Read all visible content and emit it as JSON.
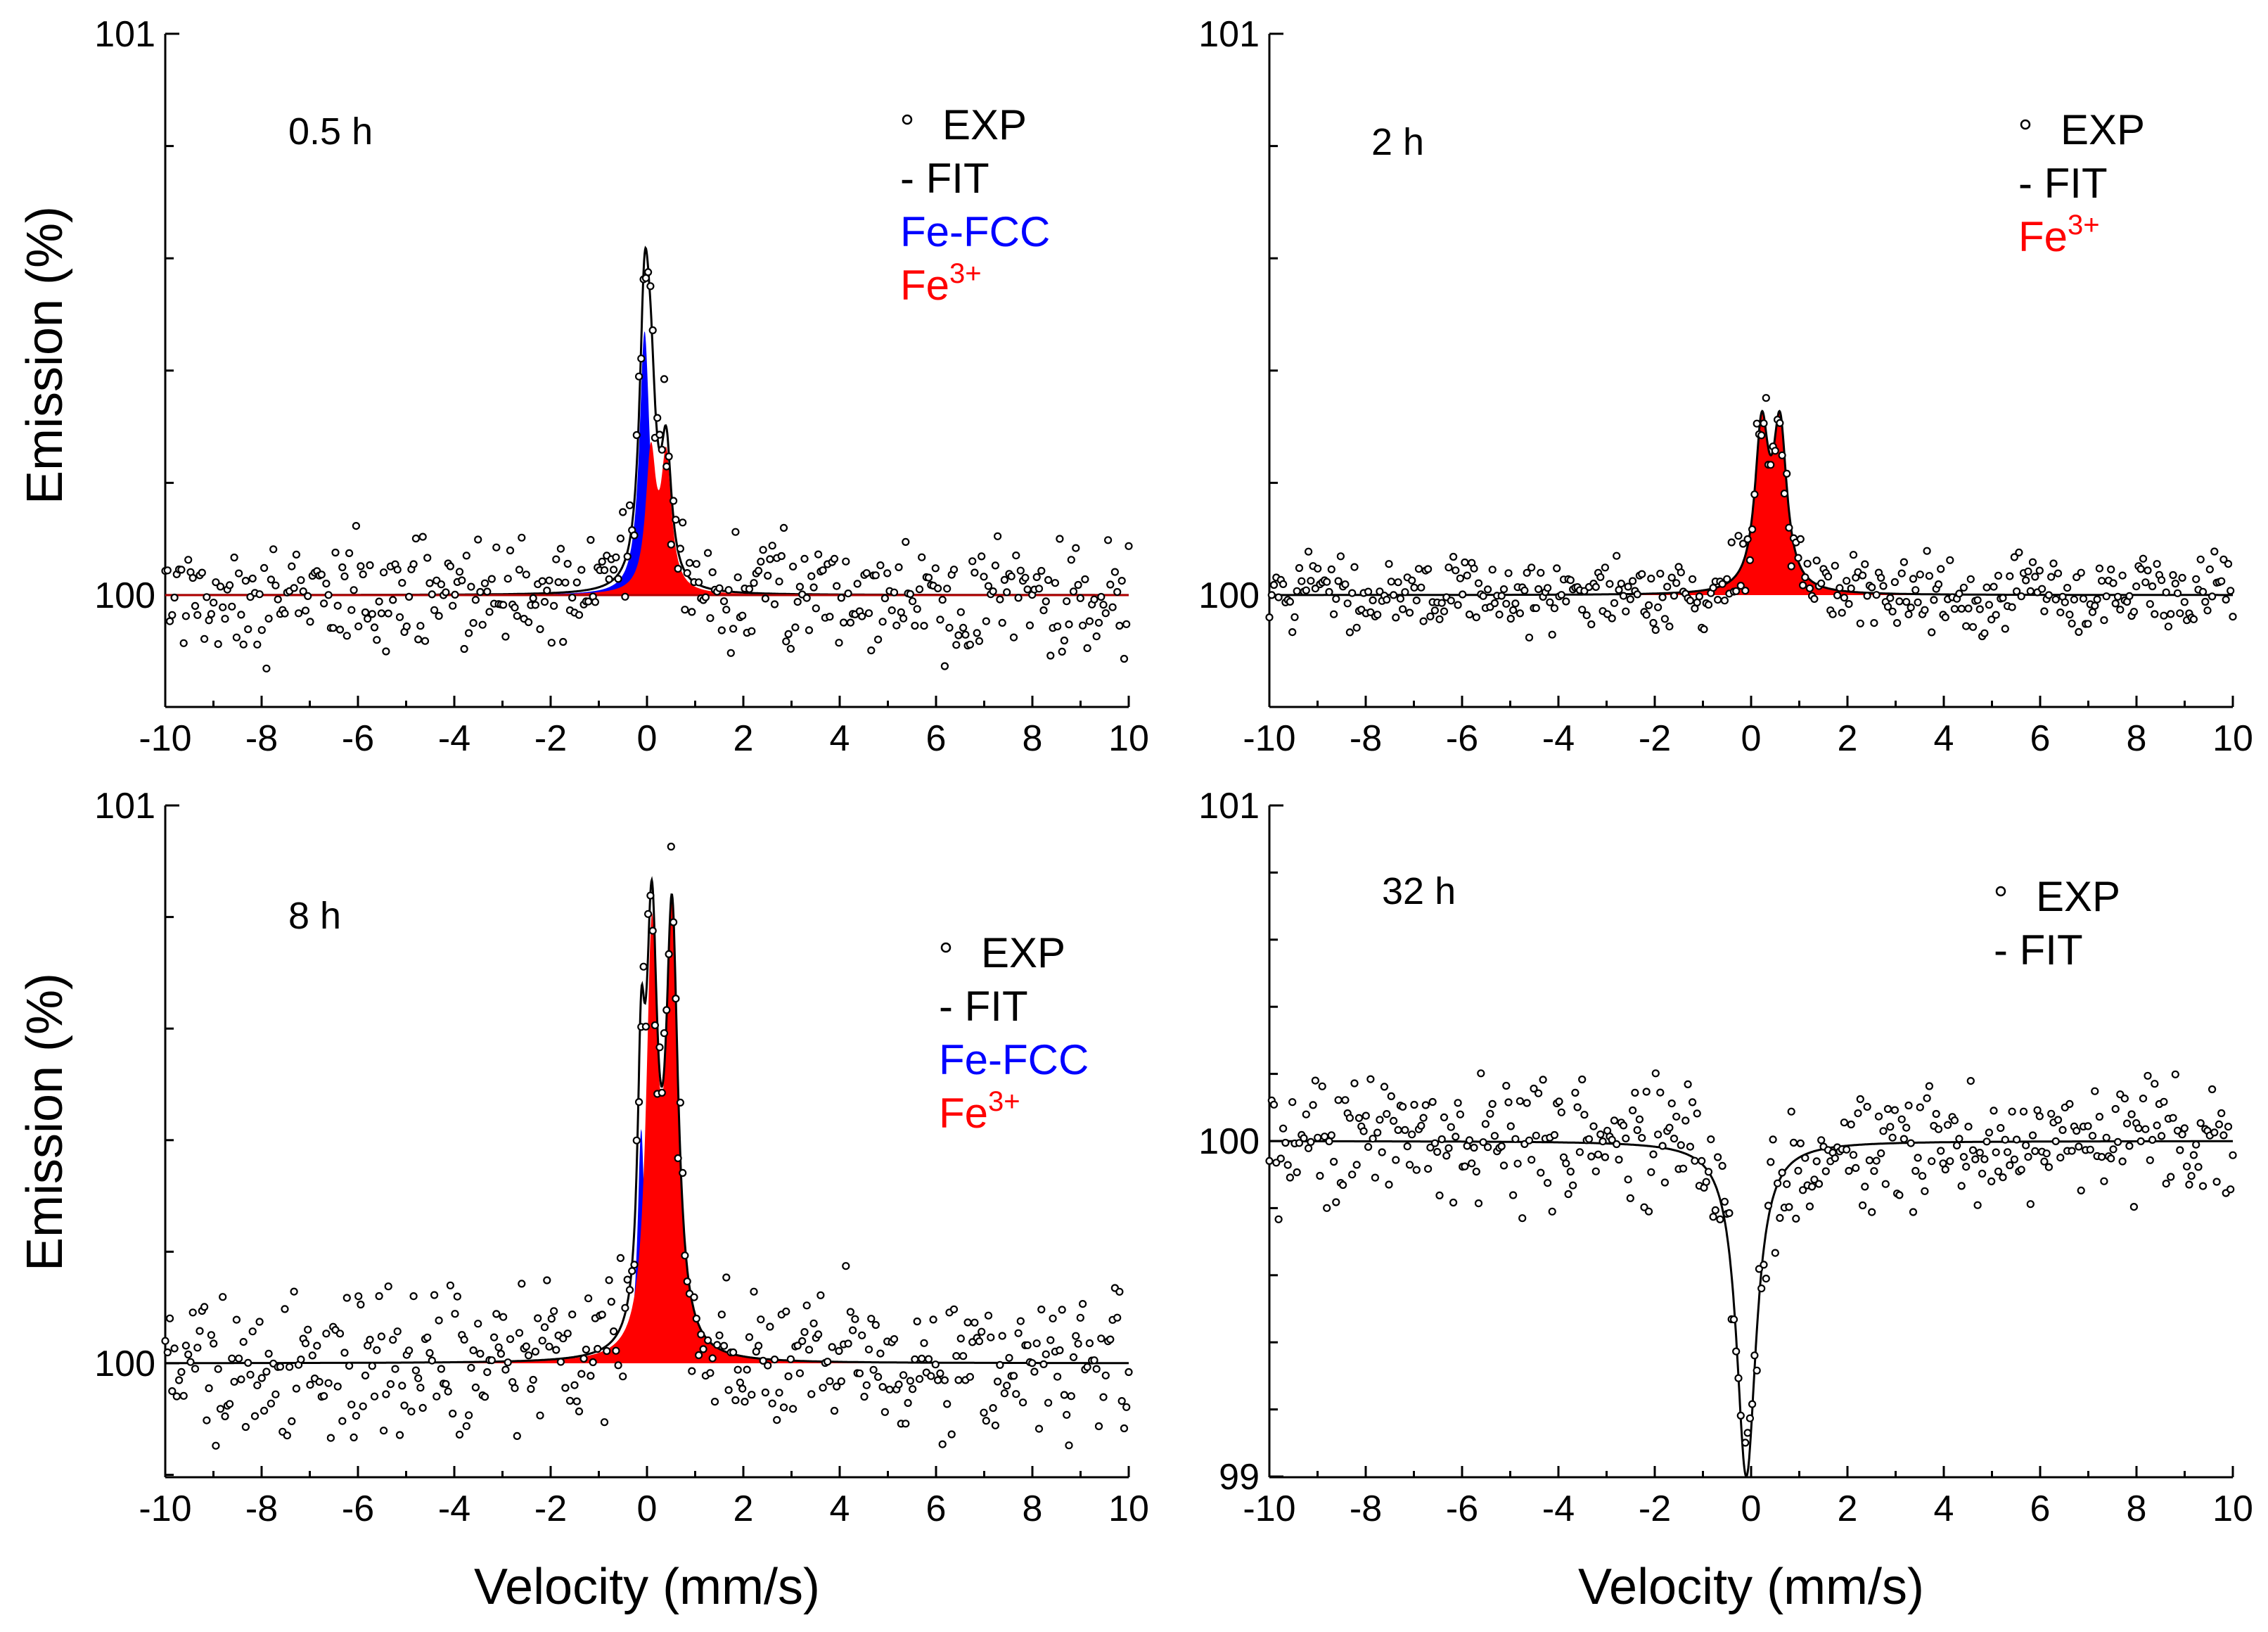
{
  "figure": {
    "xlabel": "Velocity (mm/s)",
    "ylabel": "Emission (%)",
    "colors": {
      "exp": "#000000",
      "fit": "#000000",
      "fe_fcc": "#0000ff",
      "fe3": "#ff0000",
      "baseline_05h": "#b00000"
    }
  },
  "chart_data": [
    {
      "type": "scatter",
      "panel_label": "0.5 h",
      "xlim": [
        -10,
        10
      ],
      "ylim": [
        99.8,
        101.0
      ],
      "xticks": [
        "-10",
        "-8",
        "-6",
        "-4",
        "-2",
        "0",
        "2",
        "4",
        "6",
        "8",
        "10"
      ],
      "yticks": [
        {
          "value": 100,
          "label": "100"
        },
        {
          "value": 101,
          "label": "101"
        }
      ],
      "legend": [
        "EXP",
        "- FIT",
        "Fe-FCC",
        "Fe3+"
      ],
      "legend_fe3": {
        "base": "Fe",
        "sup": "3+"
      },
      "noise_sigma": 0.06,
      "components": [
        {
          "name": "Fe-FCC",
          "color": "#0000ff",
          "peaks": [
            {
              "center": -0.05,
              "height": 0.47,
              "width": 0.13
            }
          ]
        },
        {
          "name": "Fe3+",
          "color": "#ff0000",
          "peaks": [
            {
              "center": 0.08,
              "height": 0.24,
              "width": 0.13
            },
            {
              "center": 0.4,
              "height": 0.23,
              "width": 0.13
            }
          ]
        }
      ]
    },
    {
      "type": "scatter",
      "panel_label": "2 h",
      "xlim": [
        -10,
        10
      ],
      "ylim": [
        99.8,
        101.0
      ],
      "xticks": [
        "-10",
        "-8",
        "-6",
        "-4",
        "-2",
        "0",
        "2",
        "4",
        "6",
        "8",
        "10"
      ],
      "yticks": [
        {
          "value": 100,
          "label": "100"
        },
        {
          "value": 101,
          "label": "101"
        }
      ],
      "legend": [
        "EXP",
        "- FIT",
        "Fe3+"
      ],
      "legend_fe3": {
        "base": "Fe",
        "sup": "3+"
      },
      "noise_sigma": 0.04,
      "components": [
        {
          "name": "Fe3+",
          "color": "#ff0000",
          "peaks": [
            {
              "center": 0.22,
              "height": 0.28,
              "width": 0.17
            },
            {
              "center": 0.6,
              "height": 0.28,
              "width": 0.17
            }
          ]
        }
      ]
    },
    {
      "type": "scatter",
      "panel_label": "8 h",
      "xlim": [
        -10,
        10
      ],
      "ylim": [
        99.8,
        101.0
      ],
      "xticks": [
        "-10",
        "-8",
        "-6",
        "-4",
        "-2",
        "0",
        "2",
        "4",
        "6",
        "8",
        "10"
      ],
      "yticks": [
        {
          "value": 100,
          "label": "100"
        },
        {
          "value": 101,
          "label": "101"
        }
      ],
      "legend": [
        "EXP",
        "- FIT",
        "Fe-FCC",
        "Fe3+"
      ],
      "legend_fe3": {
        "base": "Fe",
        "sup": "3+"
      },
      "noise_sigma": 0.08,
      "components": [
        {
          "name": "Fe-FCC",
          "color": "#0000ff",
          "peaks": [
            {
              "center": -0.12,
              "height": 0.42,
              "width": 0.09
            }
          ]
        },
        {
          "name": "Fe3+",
          "color": "#ff0000",
          "peaks": [
            {
              "center": 0.1,
              "height": 0.72,
              "width": 0.14
            },
            {
              "center": 0.52,
              "height": 0.76,
              "width": 0.15
            }
          ]
        }
      ]
    },
    {
      "type": "scatter",
      "panel_label": "32 h",
      "xlim": [
        -10,
        10
      ],
      "ylim": [
        99.0,
        101.0
      ],
      "xticks": [
        "-10",
        "-8",
        "-6",
        "-4",
        "-2",
        "0",
        "2",
        "4",
        "6",
        "8",
        "10"
      ],
      "yticks": [
        {
          "value": 99,
          "label": "99"
        },
        {
          "value": 100,
          "label": "100"
        },
        {
          "value": 101,
          "label": "101"
        }
      ],
      "legend": [
        "EXP",
        "- FIT"
      ],
      "noise_sigma": 0.12,
      "components": [],
      "dip": {
        "center": -0.1,
        "depth": 1.0,
        "width": 0.25
      }
    }
  ]
}
